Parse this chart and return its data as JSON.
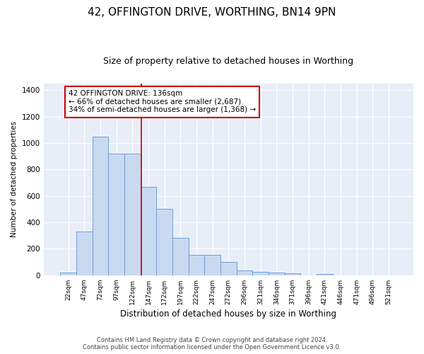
{
  "title1": "42, OFFINGTON DRIVE, WORTHING, BN14 9PN",
  "title2": "Size of property relative to detached houses in Worthing",
  "xlabel": "Distribution of detached houses by size in Worthing",
  "ylabel": "Number of detached properties",
  "categories": [
    "22sqm",
    "47sqm",
    "72sqm",
    "97sqm",
    "122sqm",
    "147sqm",
    "172sqm",
    "197sqm",
    "222sqm",
    "247sqm",
    "272sqm",
    "296sqm",
    "321sqm",
    "346sqm",
    "371sqm",
    "396sqm",
    "421sqm",
    "446sqm",
    "471sqm",
    "496sqm",
    "521sqm"
  ],
  "values": [
    20,
    330,
    1050,
    920,
    920,
    670,
    500,
    280,
    155,
    155,
    100,
    35,
    25,
    20,
    15,
    0,
    10,
    0,
    0,
    0,
    0
  ],
  "bar_color": "#c9d9f0",
  "bar_edge_color": "#6a9fd8",
  "bar_width": 1.0,
  "vline_color": "#cc0000",
  "annotation_line1": "42 OFFINGTON DRIVE: 136sqm",
  "annotation_line2": "← 66% of detached houses are smaller (2,687)",
  "annotation_line3": "34% of semi-detached houses are larger (1,368) →",
  "annotation_box_color": "#ffffff",
  "annotation_box_edge": "#cc0000",
  "ylim": [
    0,
    1450
  ],
  "yticks": [
    0,
    200,
    400,
    600,
    800,
    1000,
    1200,
    1400
  ],
  "bg_color": "#e8eef8",
  "grid_color": "#ffffff",
  "title1_fontsize": 11,
  "title2_fontsize": 9,
  "footer1": "Contains HM Land Registry data © Crown copyright and database right 2024.",
  "footer2": "Contains public sector information licensed under the Open Government Licence v3.0."
}
